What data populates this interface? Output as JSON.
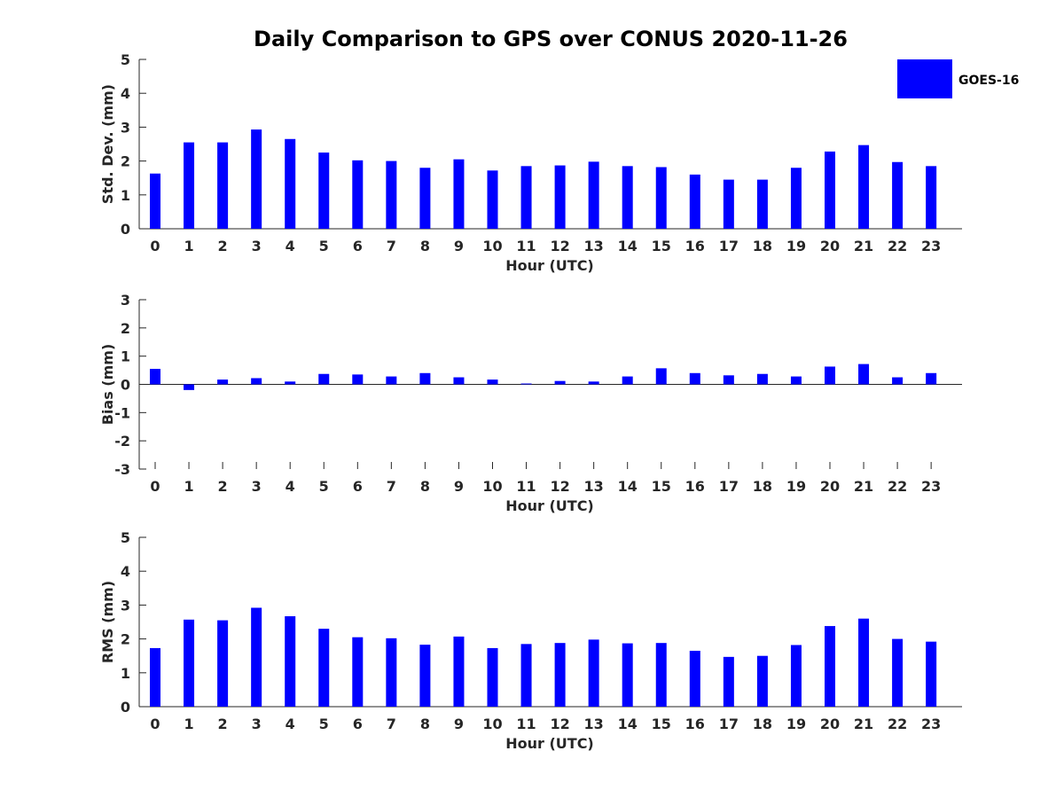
{
  "figure": {
    "title": "Daily Comparison to GPS over CONUS 2020-11-26",
    "bar_color": "#0000ff",
    "axis_color": "#262626"
  },
  "legend": {
    "label": "GOES-16",
    "placement": "top-right"
  },
  "chart_data": [
    {
      "type": "bar",
      "title": "",
      "xlabel": "Hour (UTC)",
      "ylabel": "Std. Dev. (mm)",
      "categories": [
        "0",
        "1",
        "2",
        "3",
        "4",
        "5",
        "6",
        "7",
        "8",
        "9",
        "10",
        "11",
        "12",
        "13",
        "14",
        "15",
        "16",
        "17",
        "18",
        "19",
        "20",
        "21",
        "22",
        "23"
      ],
      "yticks": [
        0,
        1,
        2,
        3,
        4,
        5
      ],
      "ylim": [
        0,
        5
      ],
      "series": [
        {
          "name": "GOES-16",
          "values": [
            1.63,
            2.55,
            2.55,
            2.93,
            2.65,
            2.25,
            2.02,
            2.0,
            1.8,
            2.05,
            1.72,
            1.85,
            1.87,
            1.98,
            1.85,
            1.82,
            1.6,
            1.45,
            1.45,
            1.8,
            2.28,
            2.47,
            1.97,
            1.85
          ]
        }
      ]
    },
    {
      "type": "bar",
      "title": "",
      "xlabel": "Hour (UTC)",
      "ylabel": "Bias (mm)",
      "categories": [
        "0",
        "1",
        "2",
        "3",
        "4",
        "5",
        "6",
        "7",
        "8",
        "9",
        "10",
        "11",
        "12",
        "13",
        "14",
        "15",
        "16",
        "17",
        "18",
        "19",
        "20",
        "21",
        "22",
        "23"
      ],
      "yticks": [
        -3,
        -2,
        -1,
        0,
        1,
        2,
        3
      ],
      "ylim": [
        -3,
        3
      ],
      "series": [
        {
          "name": "GOES-16",
          "values": [
            0.55,
            -0.2,
            0.17,
            0.22,
            0.1,
            0.37,
            0.35,
            0.28,
            0.4,
            0.25,
            0.17,
            0.03,
            0.12,
            0.1,
            0.28,
            0.57,
            0.4,
            0.32,
            0.37,
            0.28,
            0.63,
            0.72,
            0.25,
            0.4
          ]
        }
      ]
    },
    {
      "type": "bar",
      "title": "",
      "xlabel": "Hour (UTC)",
      "ylabel": "RMS (mm)",
      "categories": [
        "0",
        "1",
        "2",
        "3",
        "4",
        "5",
        "6",
        "7",
        "8",
        "9",
        "10",
        "11",
        "12",
        "13",
        "14",
        "15",
        "16",
        "17",
        "18",
        "19",
        "20",
        "21",
        "22",
        "23"
      ],
      "yticks": [
        0,
        1,
        2,
        3,
        4,
        5
      ],
      "ylim": [
        0,
        5
      ],
      "series": [
        {
          "name": "GOES-16",
          "values": [
            1.73,
            2.57,
            2.55,
            2.92,
            2.67,
            2.3,
            2.05,
            2.02,
            1.83,
            2.07,
            1.73,
            1.85,
            1.88,
            1.98,
            1.87,
            1.88,
            1.65,
            1.47,
            1.5,
            1.82,
            2.38,
            2.6,
            2.0,
            1.92
          ]
        }
      ]
    }
  ]
}
